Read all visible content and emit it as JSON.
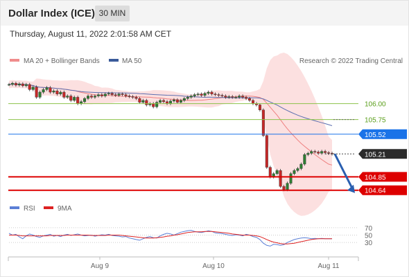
{
  "header": {
    "title": "Dollar Index (ICE)",
    "interval": "30 MIN"
  },
  "timestamp": "Thursday, August 11, 2022 2:01:58 AM CET",
  "legend": {
    "ma20_label": "MA 20 + Bollinger Bands",
    "ma50_label": "MA 50",
    "credit": "Research © 2022 Trading Central"
  },
  "rsi_legend": {
    "rsi_label": "RSI",
    "ma_label": "9MA"
  },
  "colors": {
    "candle_up": "#2e7d32",
    "candle_down": "#c62828",
    "bollinger_fill": "#f9c6c6",
    "ma20": "#ef8080",
    "ma50": "#5c6fb0",
    "resistance": "#8bc34a",
    "support": "#dd0000",
    "pivot": "#1a73e8",
    "current": "#2b2b2b",
    "arrow": "#2a5fb0",
    "rsi_line": "#5b7fd6",
    "rsi_ma": "#dd2222"
  },
  "chart_data": [
    {
      "type": "candlestick",
      "x_labels": [
        "Aug 9",
        "Aug 10",
        "Aug 11"
      ],
      "ylim": [
        104.55,
        106.55
      ],
      "levels": [
        {
          "value": 106.0,
          "label": "106.00",
          "kind": "resistance"
        },
        {
          "value": 105.75,
          "label": "105.75",
          "kind": "resistance"
        },
        {
          "value": 105.52,
          "label": "105.52",
          "kind": "pivot"
        },
        {
          "value": 105.21,
          "label": "105.21",
          "kind": "current"
        },
        {
          "value": 104.85,
          "label": "104.85",
          "kind": "support"
        },
        {
          "value": 104.64,
          "label": "104.64",
          "kind": "support"
        }
      ],
      "closes": [
        106.3,
        106.32,
        106.29,
        106.31,
        106.28,
        106.3,
        106.22,
        106.26,
        106.1,
        106.18,
        106.22,
        106.25,
        106.18,
        106.2,
        106.15,
        106.18,
        106.1,
        106.12,
        106.05,
        106.1,
        106.0,
        106.03,
        106.08,
        106.12,
        106.1,
        106.12,
        106.14,
        106.12,
        106.15,
        106.16,
        106.14,
        106.13,
        106.15,
        106.14,
        106.12,
        106.11,
        106.1,
        106.08,
        106.02,
        106.05,
        105.98,
        106.0,
        105.95,
        106.02,
        106.05,
        106.03,
        106.0,
        106.04,
        106.06,
        106.02,
        106.05,
        106.08,
        106.1,
        106.12,
        106.14,
        106.15,
        106.13,
        106.16,
        106.18,
        106.15,
        106.14,
        106.13,
        106.12,
        106.1,
        106.11,
        106.1,
        106.1,
        106.12,
        106.1,
        106.08,
        106.05,
        106.0,
        105.98,
        105.9,
        105.5,
        105.0,
        104.85,
        104.9,
        104.95,
        104.7,
        104.65,
        104.75,
        104.9,
        104.95,
        104.98,
        105.05,
        105.2,
        105.22,
        105.25,
        105.24,
        105.22,
        105.25,
        105.23,
        105.22,
        105.21
      ]
    },
    {
      "type": "line",
      "ylim": [
        0,
        100
      ],
      "y_ticks": [
        "70",
        "50",
        "30"
      ],
      "series": [
        {
          "name": "RSI",
          "values": [
            55,
            50,
            52,
            45,
            40,
            48,
            53,
            50,
            46,
            44,
            48,
            50,
            52,
            47,
            49,
            46,
            50,
            52,
            49,
            51,
            53,
            50,
            48,
            49,
            50,
            47,
            49,
            51,
            50,
            52,
            49,
            48,
            47,
            45,
            46,
            42,
            40,
            38,
            36,
            40,
            44,
            46,
            43,
            42,
            48,
            52,
            55,
            53,
            50,
            54,
            58,
            60,
            62,
            63,
            60,
            58,
            57,
            59,
            62,
            60,
            56,
            55,
            54,
            52,
            50,
            49,
            51,
            50,
            48,
            52,
            50,
            46,
            44,
            38,
            28,
            22,
            20,
            25,
            24,
            22,
            24,
            30,
            34,
            38,
            40,
            42,
            43,
            42,
            40,
            41,
            40,
            41,
            40,
            40,
            40
          ]
        },
        {
          "name": "9MA",
          "values": [
            50,
            50,
            50,
            49,
            48,
            48,
            48,
            48,
            48,
            48,
            48,
            48,
            49,
            49,
            49,
            49,
            49,
            50,
            50,
            50,
            50,
            50,
            50,
            50,
            49,
            49,
            49,
            49,
            49,
            50,
            50,
            50,
            50,
            49,
            48,
            47,
            46,
            45,
            44,
            43,
            42,
            42,
            42,
            43,
            44,
            45,
            47,
            48,
            50,
            51,
            53,
            55,
            57,
            58,
            59,
            59,
            59,
            60,
            60,
            60,
            59,
            58,
            57,
            56,
            55,
            53,
            52,
            51,
            50,
            50,
            50,
            49,
            48,
            46,
            42,
            38,
            34,
            31,
            29,
            27,
            26,
            26,
            27,
            28,
            30,
            32,
            34,
            36,
            38,
            39,
            40,
            40,
            40,
            40,
            40
          ]
        }
      ]
    }
  ]
}
